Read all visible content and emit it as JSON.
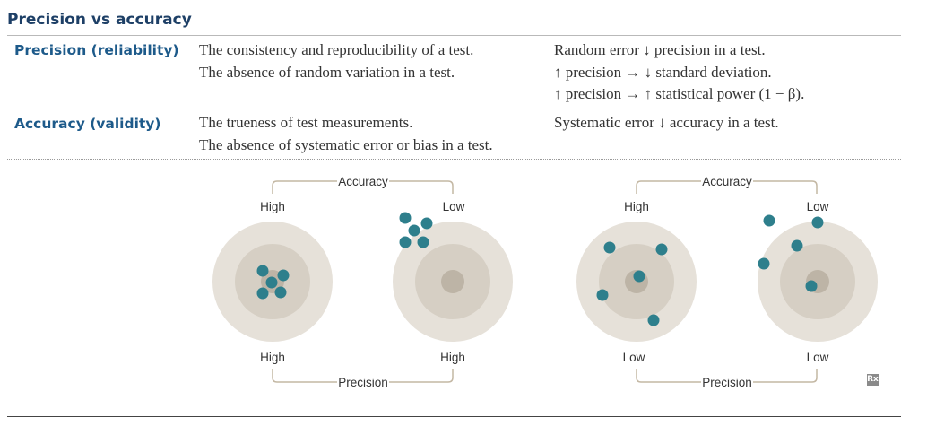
{
  "title": "Precision vs accuracy",
  "rows": [
    {
      "heading": "Precision (reliability)",
      "definitions": [
        "The consistency and reproducibility of a test.",
        "The absence of random variation in a test."
      ],
      "notes": [
        "Random error ↓ precision in a test.",
        "↑ precision → ↓ standard deviation.",
        "↑ precision → ↑ statistical power (1 − β)."
      ]
    },
    {
      "heading": "Accuracy (validity)",
      "definitions": [
        "The trueness of test measurements.",
        "The absence of systematic error or bias in a test."
      ],
      "notes": [
        "Systematic error ↓ accuracy in a test."
      ]
    }
  ],
  "figure": {
    "groups": [
      {
        "accuracy_label": "Accuracy",
        "precision_label": "Precision",
        "targets": [
          {
            "accuracy": "High",
            "precision": "High"
          },
          {
            "accuracy": "Low",
            "precision": "High"
          }
        ]
      },
      {
        "accuracy_label": "Accuracy",
        "precision_label": "Precision",
        "targets": [
          {
            "accuracy": "High",
            "precision": "Low"
          },
          {
            "accuracy": "Low",
            "precision": "Low"
          }
        ]
      }
    ],
    "colors": {
      "dot": "#2e7f8c",
      "ring_outer": "#e6e1d9",
      "ring_middle": "#d6cfc4",
      "ring_center": "#bdb4a6",
      "bracket": "#c4b8a4"
    },
    "logo_text": "Rx"
  }
}
